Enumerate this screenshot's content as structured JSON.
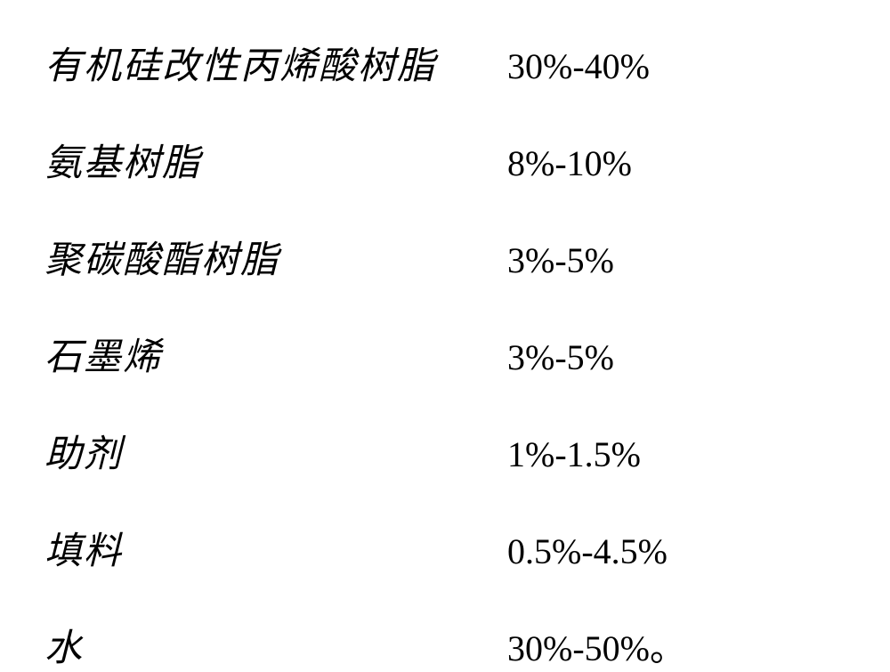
{
  "table": {
    "type": "table",
    "background_color": "#ffffff",
    "text_color": "#000000",
    "name_font_family": "KaiTi",
    "range_font_family": "Times New Roman",
    "name_fontsize": 42,
    "range_fontsize": 40,
    "row_spacing": 48,
    "name_column_width": 520,
    "rows": [
      {
        "name": "有机硅改性丙烯酸树脂",
        "range": "30%-40%"
      },
      {
        "name": "氨基树脂",
        "range": "8%-10%"
      },
      {
        "name": "聚碳酸酯树脂",
        "range": "3%-5%"
      },
      {
        "name": "石墨烯",
        "range": "3%-5%"
      },
      {
        "name": "助剂",
        "range": "1%-1.5%"
      },
      {
        "name": "填料",
        "range": "0.5%-4.5%"
      },
      {
        "name": "水",
        "range": "30%-50%。"
      }
    ]
  }
}
